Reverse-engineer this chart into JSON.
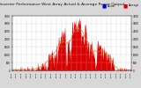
{
  "title": "Solar PV/Inverter Performance West Array Actual & Average Power Output",
  "title_fontsize": 3.2,
  "bg_color": "#d8d8d8",
  "plot_bg_color": "#ffffff",
  "bar_color": "#dd0000",
  "avg_line_color": "#ff8800",
  "legend_actual_color": "#0000dd",
  "legend_avg_color": "#dd0000",
  "ylabel_right": "Watts",
  "ylabel_fontsize": 2.5,
  "ylim": [
    0,
    3500
  ],
  "yticks": [
    0,
    500,
    1000,
    1500,
    2000,
    2500,
    3000,
    3500
  ],
  "grid_color": "#bbbbbb",
  "num_points": 288,
  "peak_hour": 12.5,
  "peak_watts": 3200
}
